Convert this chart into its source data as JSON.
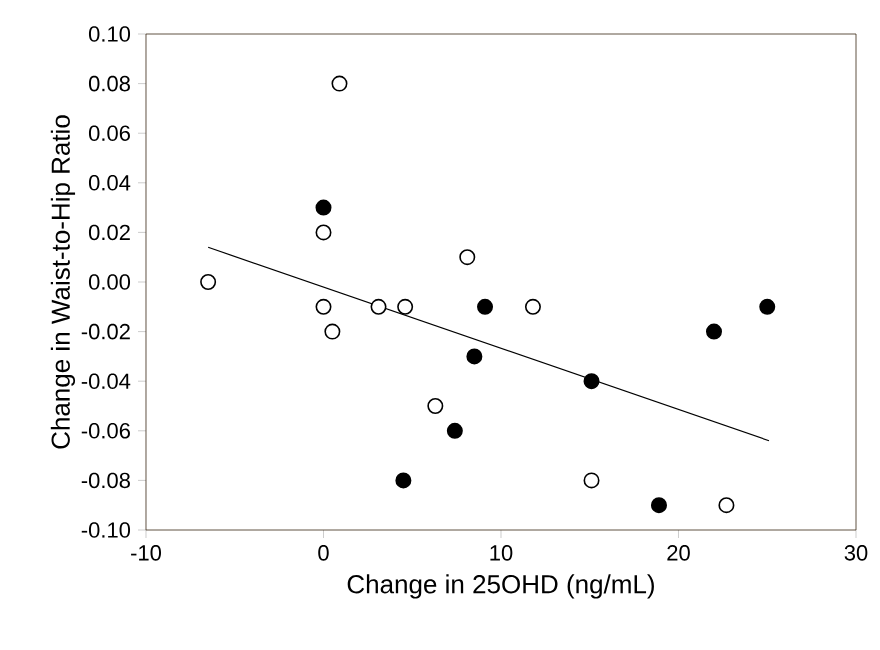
{
  "chart_data": {
    "type": "scatter",
    "xlabel": "Change in 25OHD (ng/mL)",
    "ylabel": "Change in Waist-to-Hip Ratio",
    "xlim": [
      -10,
      30
    ],
    "xticks": [
      -10,
      0,
      10,
      20,
      30
    ],
    "ylim": [
      -0.1,
      0.1
    ],
    "yticks": [
      {
        "value": -0.1,
        "label": "-0.10"
      },
      {
        "value": -0.08,
        "label": "-0.08"
      },
      {
        "value": -0.06,
        "label": "-0.06"
      },
      {
        "value": -0.04,
        "label": "-0.04"
      },
      {
        "value": -0.02,
        "label": "-0.02"
      },
      {
        "value": 0,
        "label": "0.00"
      },
      {
        "value": 0.02,
        "label": "0.02"
      },
      {
        "value": 0.04,
        "label": "0.04"
      },
      {
        "value": 0.06,
        "label": "0.06"
      },
      {
        "value": 0.08,
        "label": "0.08"
      },
      {
        "value": 0.1,
        "label": "0.10"
      }
    ],
    "grid": false,
    "series": [
      {
        "color": "#ffffff",
        "marker": "circle",
        "x": [
          -6.5,
          0.9,
          0,
          0,
          0.5,
          3.1,
          4.6,
          6.3,
          8.1,
          11.8,
          15.1,
          22.7
        ],
        "values": [
          0.0,
          0.08,
          0.02,
          -0.01,
          -0.02,
          -0.01,
          -0.01,
          -0.05,
          0.01,
          -0.01,
          -0.08,
          -0.09
        ]
      },
      {
        "color": "#000000",
        "marker": "circle",
        "x": [
          0,
          4.5,
          7.4,
          9.1,
          8.5,
          15.1,
          18.9,
          22.0,
          25.0
        ],
        "values": [
          0.03,
          -0.08,
          -0.06,
          -0.01,
          -0.03,
          -0.04,
          -0.09,
          -0.02,
          -0.01
        ]
      },
      {
        "type": "line",
        "color": "#000000",
        "marker": "none",
        "x": [
          -6.5,
          25.1
        ],
        "values": [
          0.014,
          -0.064
        ]
      }
    ]
  }
}
